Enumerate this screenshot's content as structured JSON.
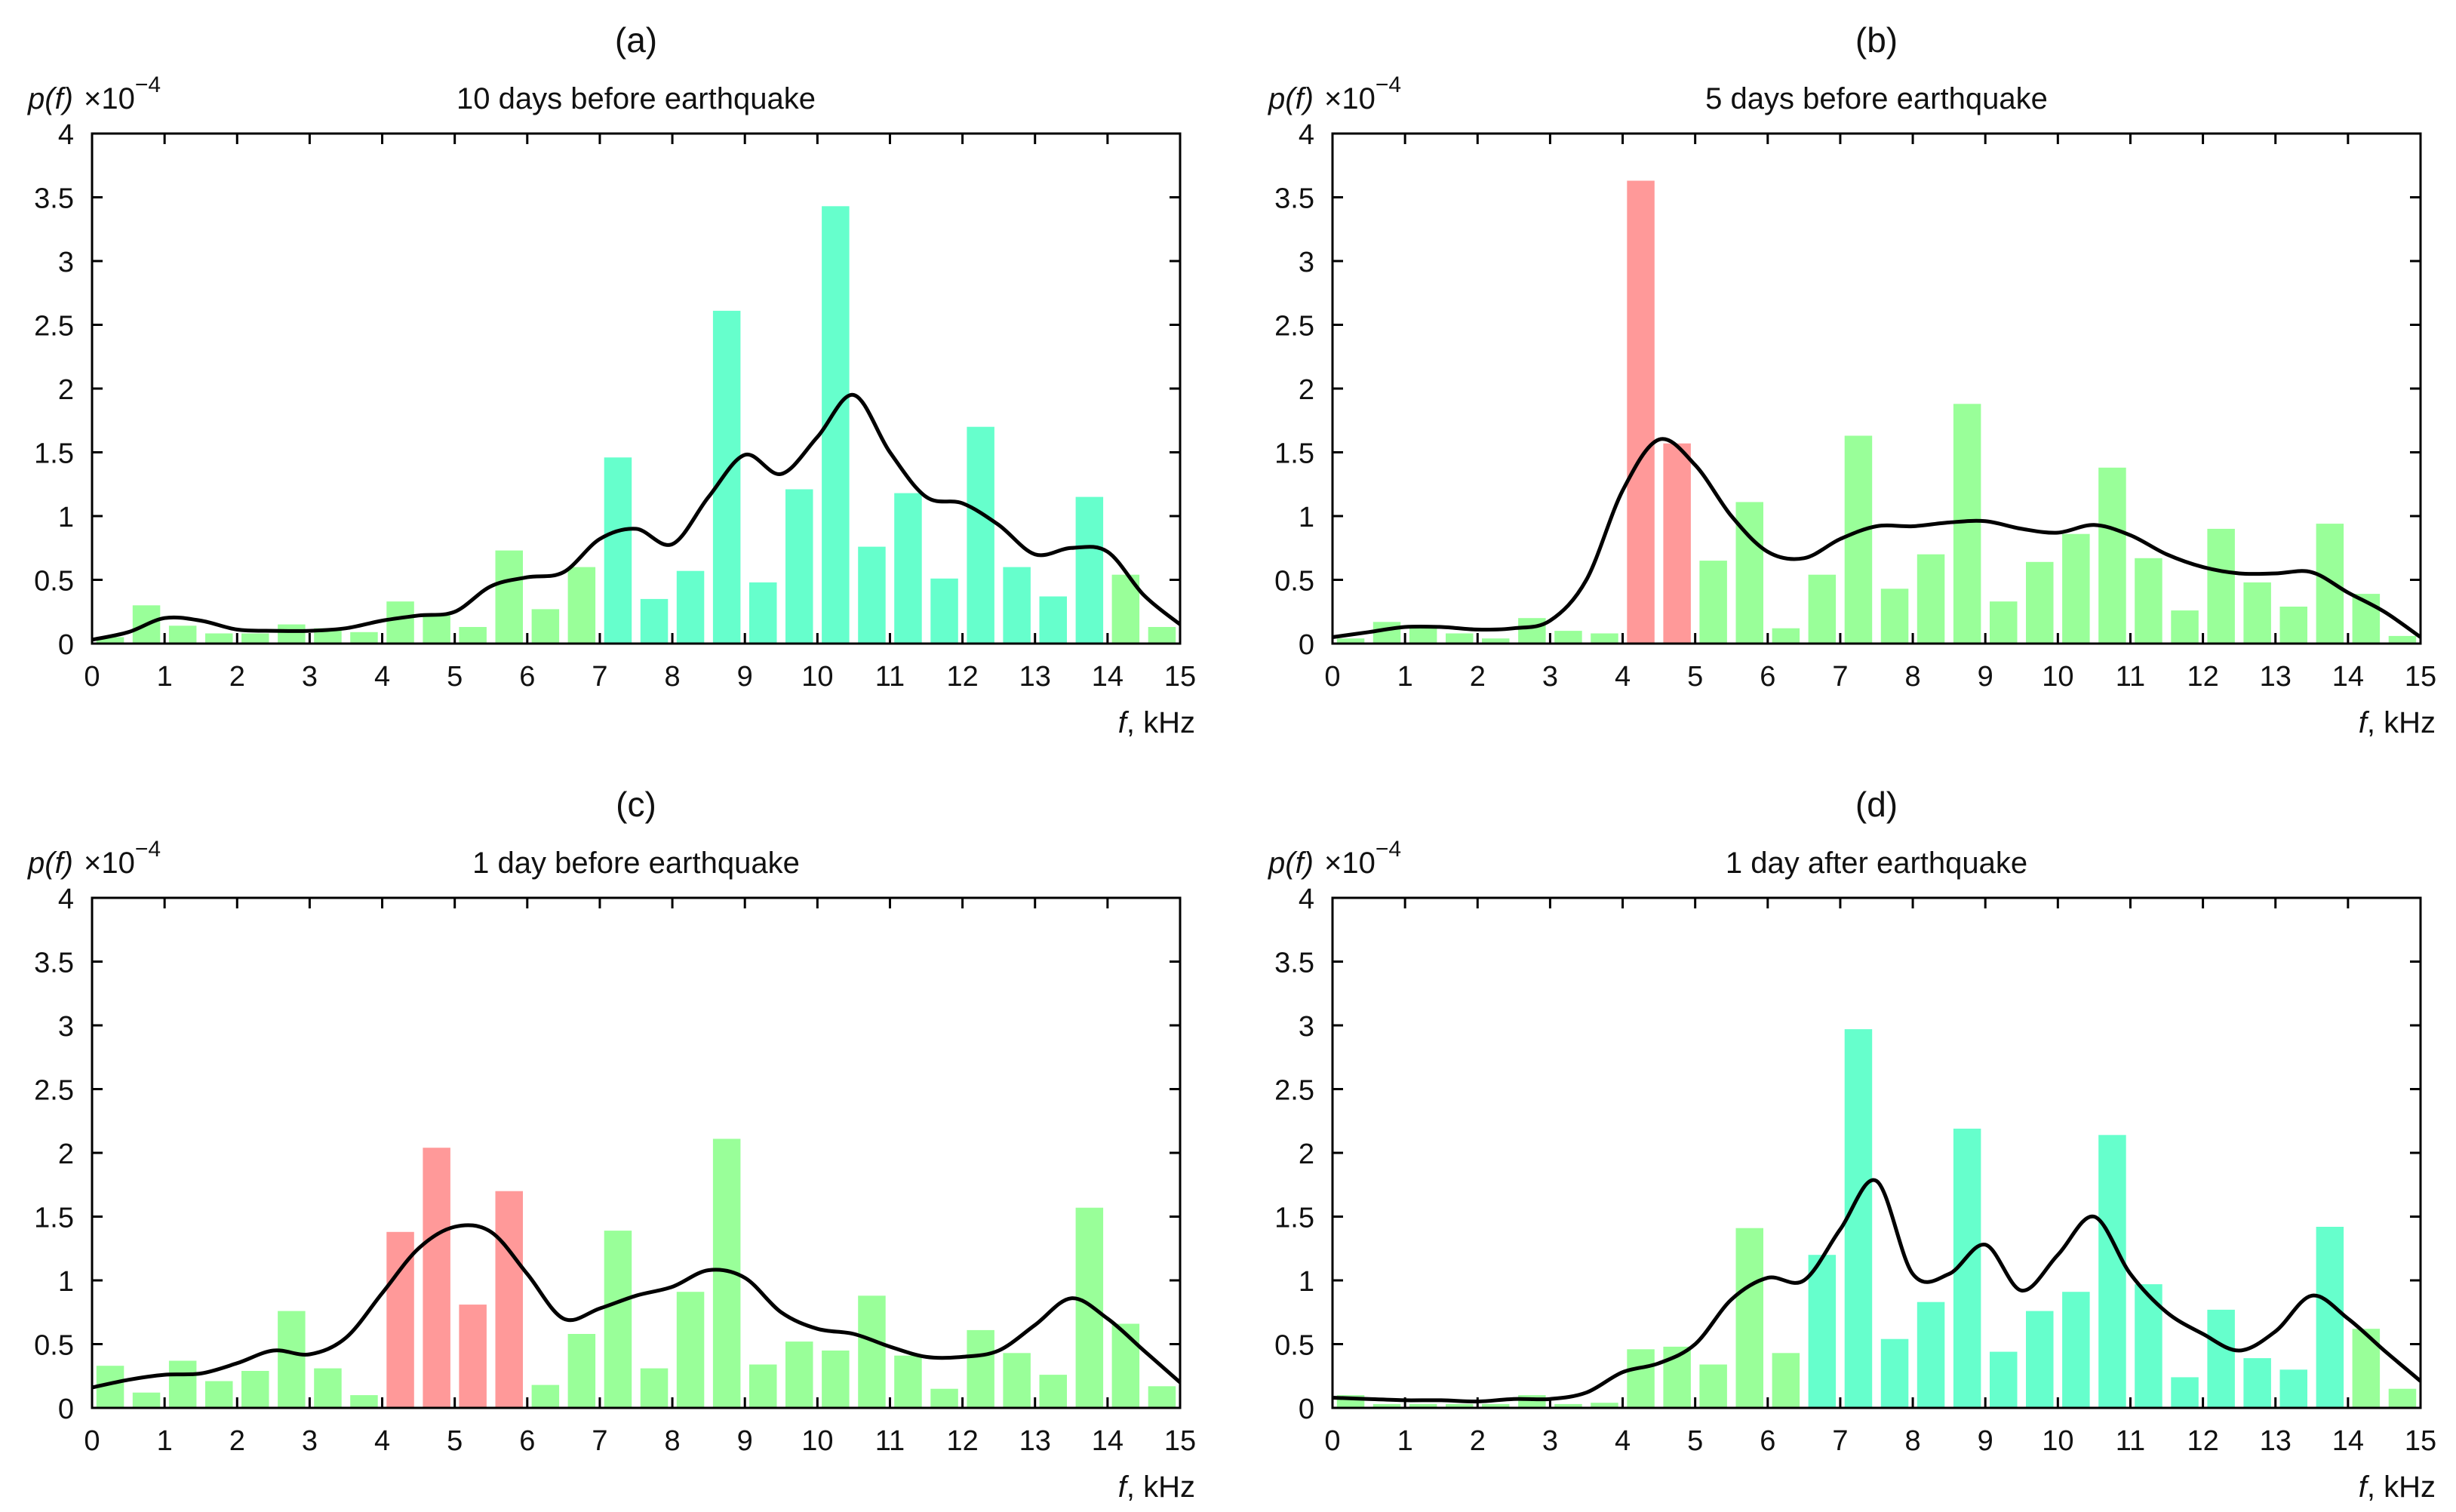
{
  "figure": {
    "y_label_main": "p(f)",
    "y_label_scale": "×10",
    "y_label_exp": "−4",
    "x_label": "kHz",
    "x_label_symbol": "f",
    "x_label_sep": ", "
  },
  "colors": {
    "cyan": "#66ffcc",
    "green": "#99ff99",
    "red": "#ff9999",
    "curve": "#000000"
  },
  "chart_data": [
    {
      "type": "bar",
      "panel_label": "(a)",
      "title": "10 days before earthquake",
      "xlabel": "f, kHz",
      "ylabel": "p(f) ×10^-4",
      "xlim": [
        0,
        15
      ],
      "ylim": [
        0,
        4
      ],
      "xticks": [
        0,
        1,
        2,
        3,
        4,
        5,
        6,
        7,
        8,
        9,
        10,
        11,
        12,
        13,
        14,
        15
      ],
      "yticks": [
        0,
        0.5,
        1,
        1.5,
        2,
        2.5,
        3,
        3.5,
        4
      ],
      "bin_width": 0.5,
      "bins": [
        {
          "x": 0.25,
          "value": 0.05,
          "color": "green"
        },
        {
          "x": 0.75,
          "value": 0.3,
          "color": "green"
        },
        {
          "x": 1.25,
          "value": 0.14,
          "color": "green"
        },
        {
          "x": 1.75,
          "value": 0.08,
          "color": "green"
        },
        {
          "x": 2.25,
          "value": 0.08,
          "color": "green"
        },
        {
          "x": 2.75,
          "value": 0.15,
          "color": "green"
        },
        {
          "x": 3.25,
          "value": 0.12,
          "color": "green"
        },
        {
          "x": 3.75,
          "value": 0.09,
          "color": "green"
        },
        {
          "x": 4.25,
          "value": 0.33,
          "color": "green"
        },
        {
          "x": 4.75,
          "value": 0.22,
          "color": "green"
        },
        {
          "x": 5.25,
          "value": 0.13,
          "color": "green"
        },
        {
          "x": 5.75,
          "value": 0.73,
          "color": "green"
        },
        {
          "x": 6.25,
          "value": 0.27,
          "color": "green"
        },
        {
          "x": 6.75,
          "value": 0.6,
          "color": "green"
        },
        {
          "x": 7.25,
          "value": 1.46,
          "color": "cyan"
        },
        {
          "x": 7.75,
          "value": 0.35,
          "color": "cyan"
        },
        {
          "x": 8.25,
          "value": 0.57,
          "color": "cyan"
        },
        {
          "x": 8.75,
          "value": 2.61,
          "color": "cyan"
        },
        {
          "x": 9.25,
          "value": 0.48,
          "color": "cyan"
        },
        {
          "x": 9.75,
          "value": 1.21,
          "color": "cyan"
        },
        {
          "x": 10.25,
          "value": 3.43,
          "color": "cyan"
        },
        {
          "x": 10.75,
          "value": 0.76,
          "color": "cyan"
        },
        {
          "x": 11.25,
          "value": 1.18,
          "color": "cyan"
        },
        {
          "x": 11.75,
          "value": 0.51,
          "color": "cyan"
        },
        {
          "x": 12.25,
          "value": 1.7,
          "color": "cyan"
        },
        {
          "x": 12.75,
          "value": 0.6,
          "color": "cyan"
        },
        {
          "x": 13.25,
          "value": 0.37,
          "color": "cyan"
        },
        {
          "x": 13.75,
          "value": 1.15,
          "color": "cyan"
        },
        {
          "x": 14.25,
          "value": 0.54,
          "color": "green"
        },
        {
          "x": 14.75,
          "value": 0.13,
          "color": "green"
        }
      ],
      "curve": {
        "name": "smoothed density",
        "x": [
          0,
          0.5,
          1,
          1.5,
          2,
          2.5,
          3,
          3.5,
          4,
          4.5,
          5,
          5.5,
          6,
          6.5,
          7,
          7.5,
          8,
          8.5,
          9,
          9.5,
          10,
          10.5,
          11,
          11.5,
          12,
          12.5,
          13,
          13.5,
          14,
          14.5,
          15
        ],
        "y": [
          0.03,
          0.09,
          0.2,
          0.18,
          0.11,
          0.1,
          0.1,
          0.12,
          0.18,
          0.22,
          0.25,
          0.45,
          0.52,
          0.56,
          0.82,
          0.9,
          0.78,
          1.15,
          1.48,
          1.33,
          1.62,
          1.95,
          1.5,
          1.15,
          1.1,
          0.93,
          0.7,
          0.75,
          0.72,
          0.38,
          0.15
        ]
      }
    },
    {
      "type": "bar",
      "panel_label": "(b)",
      "title": "5 days before earthquake",
      "xlabel": "f, kHz",
      "ylabel": "p(f) ×10^-4",
      "xlim": [
        0,
        15
      ],
      "ylim": [
        0,
        4
      ],
      "xticks": [
        0,
        1,
        2,
        3,
        4,
        5,
        6,
        7,
        8,
        9,
        10,
        11,
        12,
        13,
        14,
        15
      ],
      "yticks": [
        0,
        0.5,
        1,
        1.5,
        2,
        2.5,
        3,
        3.5,
        4
      ],
      "bin_width": 0.5,
      "bins": [
        {
          "x": 0.25,
          "value": 0.04,
          "color": "green"
        },
        {
          "x": 0.75,
          "value": 0.17,
          "color": "green"
        },
        {
          "x": 1.25,
          "value": 0.12,
          "color": "green"
        },
        {
          "x": 1.75,
          "value": 0.08,
          "color": "green"
        },
        {
          "x": 2.25,
          "value": 0.04,
          "color": "green"
        },
        {
          "x": 2.75,
          "value": 0.2,
          "color": "green"
        },
        {
          "x": 3.25,
          "value": 0.1,
          "color": "green"
        },
        {
          "x": 3.75,
          "value": 0.08,
          "color": "green"
        },
        {
          "x": 4.25,
          "value": 3.63,
          "color": "red"
        },
        {
          "x": 4.75,
          "value": 1.57,
          "color": "red"
        },
        {
          "x": 5.25,
          "value": 0.65,
          "color": "green"
        },
        {
          "x": 5.75,
          "value": 1.11,
          "color": "green"
        },
        {
          "x": 6.25,
          "value": 0.12,
          "color": "green"
        },
        {
          "x": 6.75,
          "value": 0.54,
          "color": "green"
        },
        {
          "x": 7.25,
          "value": 1.63,
          "color": "green"
        },
        {
          "x": 7.75,
          "value": 0.43,
          "color": "green"
        },
        {
          "x": 8.25,
          "value": 0.7,
          "color": "green"
        },
        {
          "x": 8.75,
          "value": 1.88,
          "color": "green"
        },
        {
          "x": 9.25,
          "value": 0.33,
          "color": "green"
        },
        {
          "x": 9.75,
          "value": 0.64,
          "color": "green"
        },
        {
          "x": 10.25,
          "value": 0.86,
          "color": "green"
        },
        {
          "x": 10.75,
          "value": 1.38,
          "color": "green"
        },
        {
          "x": 11.25,
          "value": 0.67,
          "color": "green"
        },
        {
          "x": 11.75,
          "value": 0.26,
          "color": "green"
        },
        {
          "x": 12.25,
          "value": 0.9,
          "color": "green"
        },
        {
          "x": 12.75,
          "value": 0.48,
          "color": "green"
        },
        {
          "x": 13.25,
          "value": 0.29,
          "color": "green"
        },
        {
          "x": 13.75,
          "value": 0.94,
          "color": "green"
        },
        {
          "x": 14.25,
          "value": 0.39,
          "color": "green"
        },
        {
          "x": 14.75,
          "value": 0.06,
          "color": "green"
        }
      ],
      "curve": {
        "name": "smoothed density",
        "x": [
          0,
          0.5,
          1,
          1.5,
          2,
          2.5,
          3,
          3.5,
          4,
          4.5,
          5,
          5.5,
          6,
          6.5,
          7,
          7.5,
          8,
          8.5,
          9,
          9.5,
          10,
          10.5,
          11,
          11.5,
          12,
          12.5,
          13,
          13.5,
          14,
          14.5,
          15
        ],
        "y": [
          0.05,
          0.09,
          0.13,
          0.13,
          0.11,
          0.12,
          0.18,
          0.5,
          1.2,
          1.6,
          1.4,
          1.0,
          0.72,
          0.67,
          0.82,
          0.92,
          0.92,
          0.95,
          0.96,
          0.9,
          0.87,
          0.93,
          0.85,
          0.7,
          0.6,
          0.55,
          0.55,
          0.56,
          0.4,
          0.25,
          0.05
        ]
      }
    },
    {
      "type": "bar",
      "panel_label": "(c)",
      "title": "1 day before earthquake",
      "xlabel": "f, kHz",
      "ylabel": "p(f) ×10^-4",
      "xlim": [
        0,
        15
      ],
      "ylim": [
        0,
        4
      ],
      "xticks": [
        0,
        1,
        2,
        3,
        4,
        5,
        6,
        7,
        8,
        9,
        10,
        11,
        12,
        13,
        14,
        15
      ],
      "yticks": [
        0,
        0.5,
        1,
        1.5,
        2,
        2.5,
        3,
        3.5,
        4
      ],
      "bin_width": 0.5,
      "bins": [
        {
          "x": 0.25,
          "value": 0.33,
          "color": "green"
        },
        {
          "x": 0.75,
          "value": 0.12,
          "color": "green"
        },
        {
          "x": 1.25,
          "value": 0.37,
          "color": "green"
        },
        {
          "x": 1.75,
          "value": 0.21,
          "color": "green"
        },
        {
          "x": 2.25,
          "value": 0.29,
          "color": "green"
        },
        {
          "x": 2.75,
          "value": 0.76,
          "color": "green"
        },
        {
          "x": 3.25,
          "value": 0.31,
          "color": "green"
        },
        {
          "x": 3.75,
          "value": 0.1,
          "color": "green"
        },
        {
          "x": 4.25,
          "value": 1.38,
          "color": "red"
        },
        {
          "x": 4.75,
          "value": 2.04,
          "color": "red"
        },
        {
          "x": 5.25,
          "value": 0.81,
          "color": "red"
        },
        {
          "x": 5.75,
          "value": 1.7,
          "color": "red"
        },
        {
          "x": 6.25,
          "value": 0.18,
          "color": "green"
        },
        {
          "x": 6.75,
          "value": 0.58,
          "color": "green"
        },
        {
          "x": 7.25,
          "value": 1.39,
          "color": "green"
        },
        {
          "x": 7.75,
          "value": 0.31,
          "color": "green"
        },
        {
          "x": 8.25,
          "value": 0.91,
          "color": "green"
        },
        {
          "x": 8.75,
          "value": 2.11,
          "color": "green"
        },
        {
          "x": 9.25,
          "value": 0.34,
          "color": "green"
        },
        {
          "x": 9.75,
          "value": 0.52,
          "color": "green"
        },
        {
          "x": 10.25,
          "value": 0.45,
          "color": "green"
        },
        {
          "x": 10.75,
          "value": 0.88,
          "color": "green"
        },
        {
          "x": 11.25,
          "value": 0.41,
          "color": "green"
        },
        {
          "x": 11.75,
          "value": 0.15,
          "color": "green"
        },
        {
          "x": 12.25,
          "value": 0.61,
          "color": "green"
        },
        {
          "x": 12.75,
          "value": 0.43,
          "color": "green"
        },
        {
          "x": 13.25,
          "value": 0.26,
          "color": "green"
        },
        {
          "x": 13.75,
          "value": 1.57,
          "color": "green"
        },
        {
          "x": 14.25,
          "value": 0.66,
          "color": "green"
        },
        {
          "x": 14.75,
          "value": 0.17,
          "color": "green"
        }
      ],
      "curve": {
        "name": "smoothed density",
        "x": [
          0,
          0.5,
          1,
          1.5,
          2,
          2.5,
          3,
          3.5,
          4,
          4.5,
          5,
          5.5,
          6,
          6.5,
          7,
          7.5,
          8,
          8.5,
          9,
          9.5,
          10,
          10.5,
          11,
          11.5,
          12,
          12.5,
          13,
          13.5,
          14,
          14.5,
          15
        ],
        "y": [
          0.16,
          0.22,
          0.26,
          0.27,
          0.35,
          0.45,
          0.42,
          0.55,
          0.9,
          1.25,
          1.42,
          1.38,
          1.05,
          0.7,
          0.78,
          0.88,
          0.95,
          1.08,
          1.02,
          0.75,
          0.62,
          0.58,
          0.48,
          0.4,
          0.4,
          0.45,
          0.65,
          0.86,
          0.7,
          0.45,
          0.2
        ]
      }
    },
    {
      "type": "bar",
      "panel_label": "(d)",
      "title": "1 day after earthquake",
      "xlabel": "f, kHz",
      "ylabel": "p(f) ×10^-4",
      "xlim": [
        0,
        15
      ],
      "ylim": [
        0,
        4
      ],
      "xticks": [
        0,
        1,
        2,
        3,
        4,
        5,
        6,
        7,
        8,
        9,
        10,
        11,
        12,
        13,
        14,
        15
      ],
      "yticks": [
        0,
        0.5,
        1,
        1.5,
        2,
        2.5,
        3,
        3.5,
        4
      ],
      "bin_width": 0.5,
      "bins": [
        {
          "x": 0.25,
          "value": 0.1,
          "color": "green"
        },
        {
          "x": 0.75,
          "value": 0.03,
          "color": "green"
        },
        {
          "x": 1.25,
          "value": 0.03,
          "color": "green"
        },
        {
          "x": 1.75,
          "value": 0.03,
          "color": "green"
        },
        {
          "x": 2.25,
          "value": 0.03,
          "color": "green"
        },
        {
          "x": 2.75,
          "value": 0.1,
          "color": "green"
        },
        {
          "x": 3.25,
          "value": 0.03,
          "color": "green"
        },
        {
          "x": 3.75,
          "value": 0.04,
          "color": "green"
        },
        {
          "x": 4.25,
          "value": 0.46,
          "color": "green"
        },
        {
          "x": 4.75,
          "value": 0.48,
          "color": "green"
        },
        {
          "x": 5.25,
          "value": 0.34,
          "color": "green"
        },
        {
          "x": 5.75,
          "value": 1.41,
          "color": "green"
        },
        {
          "x": 6.25,
          "value": 0.43,
          "color": "green"
        },
        {
          "x": 6.75,
          "value": 1.2,
          "color": "cyan"
        },
        {
          "x": 7.25,
          "value": 2.97,
          "color": "cyan"
        },
        {
          "x": 7.75,
          "value": 0.54,
          "color": "cyan"
        },
        {
          "x": 8.25,
          "value": 0.83,
          "color": "cyan"
        },
        {
          "x": 8.75,
          "value": 2.19,
          "color": "cyan"
        },
        {
          "x": 9.25,
          "value": 0.44,
          "color": "cyan"
        },
        {
          "x": 9.75,
          "value": 0.76,
          "color": "cyan"
        },
        {
          "x": 10.25,
          "value": 0.91,
          "color": "cyan"
        },
        {
          "x": 10.75,
          "value": 2.14,
          "color": "cyan"
        },
        {
          "x": 11.25,
          "value": 0.97,
          "color": "cyan"
        },
        {
          "x": 11.75,
          "value": 0.24,
          "color": "cyan"
        },
        {
          "x": 12.25,
          "value": 0.77,
          "color": "cyan"
        },
        {
          "x": 12.75,
          "value": 0.39,
          "color": "cyan"
        },
        {
          "x": 13.25,
          "value": 0.3,
          "color": "cyan"
        },
        {
          "x": 13.75,
          "value": 1.42,
          "color": "cyan"
        },
        {
          "x": 14.25,
          "value": 0.62,
          "color": "green"
        },
        {
          "x": 14.75,
          "value": 0.15,
          "color": "green"
        }
      ],
      "curve": {
        "name": "smoothed density",
        "x": [
          0,
          0.5,
          1,
          1.5,
          2,
          2.5,
          3,
          3.5,
          4,
          4.5,
          5,
          5.5,
          6,
          6.5,
          7,
          7.5,
          8,
          8.5,
          9,
          9.5,
          10,
          10.5,
          11,
          11.5,
          12,
          12.5,
          13,
          13.5,
          14,
          14.5,
          15
        ],
        "y": [
          0.08,
          0.07,
          0.06,
          0.06,
          0.05,
          0.07,
          0.07,
          0.12,
          0.28,
          0.35,
          0.5,
          0.85,
          1.02,
          1.0,
          1.4,
          1.78,
          1.05,
          1.05,
          1.28,
          0.92,
          1.2,
          1.5,
          1.05,
          0.75,
          0.58,
          0.45,
          0.6,
          0.88,
          0.7,
          0.45,
          0.21
        ]
      }
    }
  ]
}
